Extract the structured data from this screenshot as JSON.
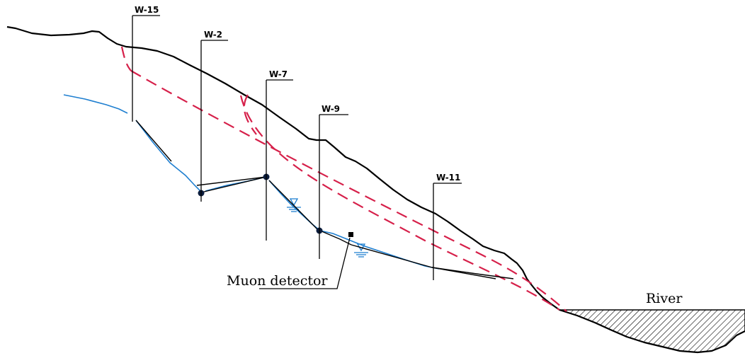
{
  "wells": [
    {
      "id": "w15",
      "label": "W-15"
    },
    {
      "id": "w2",
      "label": "W-2"
    },
    {
      "id": "w7",
      "label": "W-7"
    },
    {
      "id": "w9",
      "label": "W-9"
    },
    {
      "id": "w11",
      "label": "W-11"
    }
  ],
  "labels": {
    "muon_detector": "Muon detector",
    "river": "River"
  },
  "colors": {
    "ground": "#000000",
    "slip_surface": "#d6204a",
    "water_table": "#1f7fd0",
    "point": "#0c1d3d"
  }
}
